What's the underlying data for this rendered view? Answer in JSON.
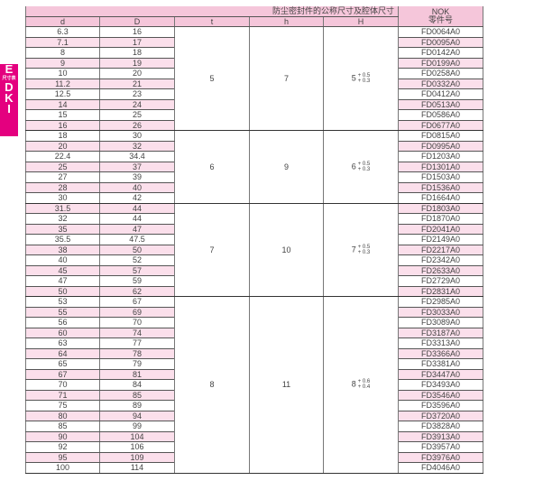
{
  "side_tab": {
    "letter_top": "E",
    "caption": "尺寸表",
    "letters": [
      "D",
      "K",
      "I"
    ]
  },
  "header": {
    "group_title": "防尘密封件的公称尺寸及腔体尺寸",
    "columns": [
      "d",
      "D",
      "t",
      "h",
      "H"
    ],
    "nok_line1": "NOK",
    "nok_line2": "零件号"
  },
  "groups": [
    {
      "t": "5",
      "h": "7",
      "H_base": "5",
      "H_upper": "+ 0.5",
      "H_lower": "+ 0.3",
      "rows": [
        [
          "6.3",
          "16",
          "FD0064A0"
        ],
        [
          "7.1",
          "17",
          "FD0095A0"
        ],
        [
          "8",
          "18",
          "FD0142A0"
        ],
        [
          "9",
          "19",
          "FD0199A0"
        ],
        [
          "10",
          "20",
          "FD0258A0"
        ],
        [
          "11.2",
          "21",
          "FD0332A0"
        ],
        [
          "12.5",
          "23",
          "FD0412A0"
        ],
        [
          "14",
          "24",
          "FD0513A0"
        ],
        [
          "15",
          "25",
          "FD0586A0"
        ],
        [
          "16",
          "26",
          "FD0677A0"
        ]
      ]
    },
    {
      "t": "6",
      "h": "9",
      "H_base": "6",
      "H_upper": "+ 0.5",
      "H_lower": "+ 0.3",
      "rows": [
        [
          "18",
          "30",
          "FD0815A0"
        ],
        [
          "20",
          "32",
          "FD0995A0"
        ],
        [
          "22.4",
          "34.4",
          "FD1203A0"
        ],
        [
          "25",
          "37",
          "FD1301A0"
        ],
        [
          "27",
          "39",
          "FD1503A0"
        ],
        [
          "28",
          "40",
          "FD1536A0"
        ],
        [
          "30",
          "42",
          "FD1664A0"
        ]
      ]
    },
    {
      "t": "7",
      "h": "10",
      "H_base": "7",
      "H_upper": "+ 0.5",
      "H_lower": "+ 0.3",
      "rows": [
        [
          "31.5",
          "44",
          "FD1803A0"
        ],
        [
          "32",
          "44",
          "FD1870A0"
        ],
        [
          "35",
          "47",
          "FD2041A0"
        ],
        [
          "35.5",
          "47.5",
          "FD2149A0"
        ],
        [
          "38",
          "50",
          "FD2217A0"
        ],
        [
          "40",
          "52",
          "FD2342A0"
        ],
        [
          "45",
          "57",
          "FD2633A0"
        ],
        [
          "47",
          "59",
          "FD2729A0"
        ],
        [
          "50",
          "62",
          "FD2831A0"
        ]
      ]
    },
    {
      "t": "8",
      "h": "11",
      "H_base": "8",
      "H_upper": "+ 0.6",
      "H_lower": "+ 0.4",
      "rows": [
        [
          "53",
          "67",
          "FD2985A0"
        ],
        [
          "55",
          "69",
          "FD3033A0"
        ],
        [
          "56",
          "70",
          "FD3089A0"
        ],
        [
          "60",
          "74",
          "FD3187A0"
        ],
        [
          "63",
          "77",
          "FD3313A0"
        ],
        [
          "64",
          "78",
          "FD3366A0"
        ],
        [
          "65",
          "79",
          "FD3381A0"
        ],
        [
          "67",
          "81",
          "FD3447A0"
        ],
        [
          "70",
          "84",
          "FD3493A0"
        ],
        [
          "71",
          "85",
          "FD3546A0"
        ],
        [
          "75",
          "89",
          "FD3596A0"
        ],
        [
          "80",
          "94",
          "FD3720A0"
        ],
        [
          "85",
          "99",
          "FD3828A0"
        ],
        [
          "90",
          "104",
          "FD3913A0"
        ],
        [
          "92",
          "106",
          "FD3957A0"
        ],
        [
          "95",
          "109",
          "FD3976A0"
        ],
        [
          "100",
          "114",
          "FD4046A0"
        ]
      ]
    }
  ]
}
